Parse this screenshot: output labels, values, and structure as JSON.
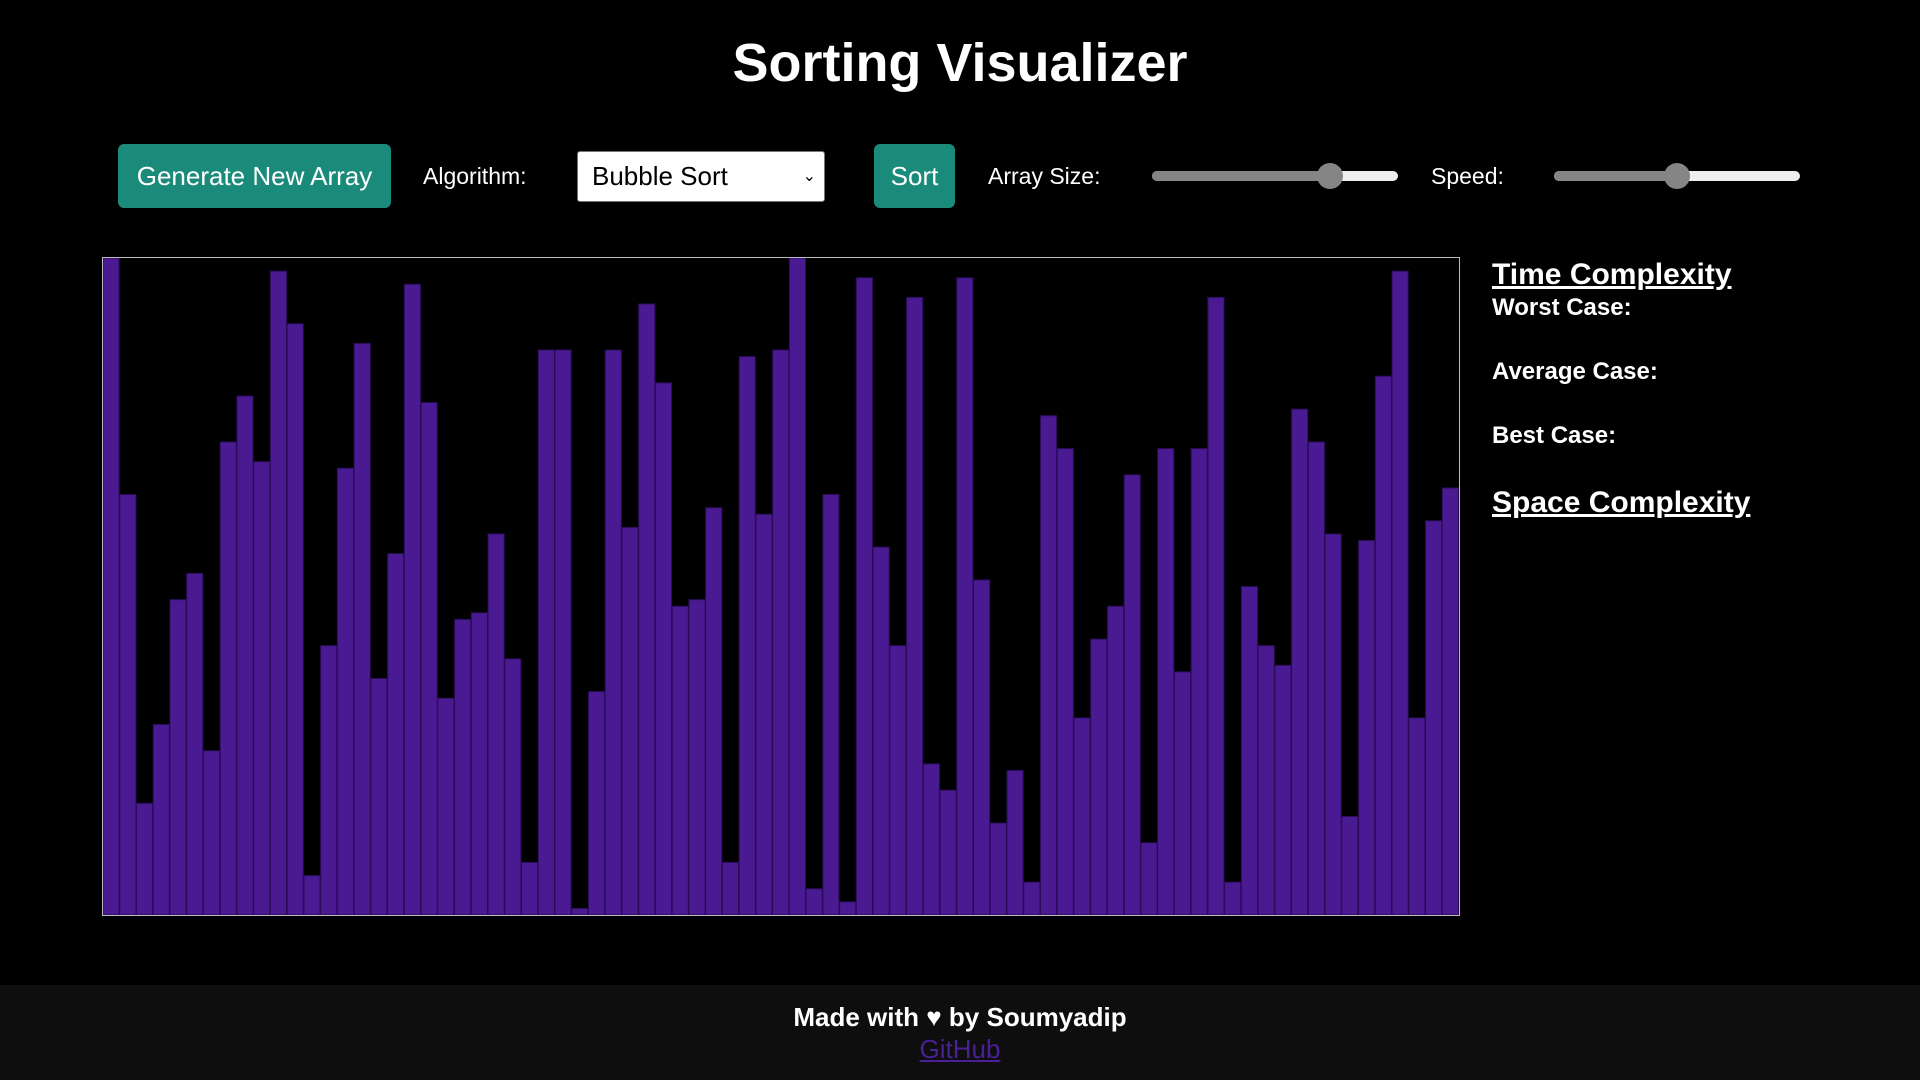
{
  "header": {
    "title": "Sorting Visualizer"
  },
  "controls": {
    "generate_label": "Generate New Array",
    "algorithm_label": "Algorithm:",
    "algorithm_selected": "Bubble Sort",
    "sort_label": "Sort",
    "array_size_label": "Array Size:",
    "array_size_fraction": 0.75,
    "speed_label": "Speed:",
    "speed_fraction": 0.5
  },
  "colors": {
    "bar": "#4a1a92",
    "bar_stroke": "#2a0d57",
    "button": "#1a8a7a",
    "link": "#4b1f97"
  },
  "bars": {
    "values": [
      100,
      64,
      17,
      29,
      48,
      52,
      25,
      72,
      79,
      69,
      98,
      90,
      6,
      41,
      68,
      87,
      36,
      55,
      96,
      78,
      33,
      45,
      46,
      58,
      39,
      8,
      86,
      86,
      1,
      34,
      86,
      59,
      93,
      81,
      47,
      48,
      62,
      8,
      85,
      61,
      86,
      100,
      4,
      64,
      2,
      97,
      56,
      41,
      94,
      23,
      19,
      97,
      51,
      14,
      22,
      5,
      76,
      71,
      30,
      42,
      47,
      67,
      11,
      71,
      37,
      71,
      94,
      5,
      50,
      41,
      38,
      77,
      72,
      58,
      15,
      57,
      82,
      98,
      30,
      60,
      65
    ]
  },
  "complexity": {
    "time_heading": "Time Complexity",
    "worst_label": "Worst Case:",
    "average_label": "Average Case:",
    "best_label": "Best Case:",
    "space_heading": "Space Complexity"
  },
  "footer": {
    "text": "Made with ♥ by Soumyadip",
    "link_label": "GitHub"
  }
}
